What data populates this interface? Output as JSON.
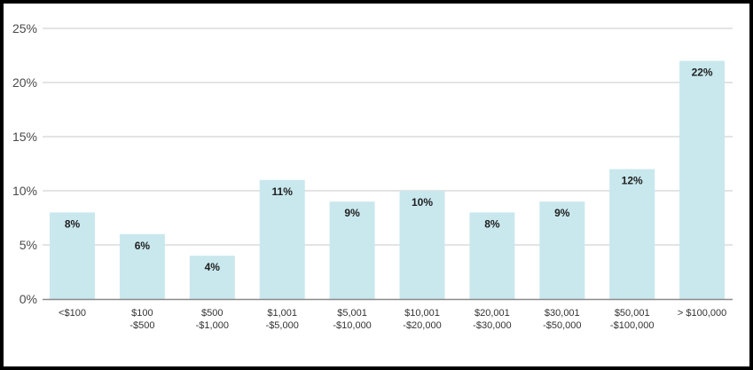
{
  "chart_data": {
    "type": "bar",
    "categories": [
      [
        "<$100"
      ],
      [
        "$100",
        "-$500"
      ],
      [
        "$500",
        "-$1,000"
      ],
      [
        "$1,001",
        "-$5,000"
      ],
      [
        "$5,001",
        "-$10,000"
      ],
      [
        "$10,001",
        "-$20,000"
      ],
      [
        "$20,001",
        "-$30,000"
      ],
      [
        "$30,001",
        "-$50,000"
      ],
      [
        "$50,001",
        "-$100,000"
      ],
      [
        "> $100,000"
      ]
    ],
    "values": [
      8,
      6,
      4,
      11,
      9,
      10,
      8,
      9,
      12,
      22
    ],
    "data_labels": [
      "8%",
      "6%",
      "4%",
      "11%",
      "9%",
      "10%",
      "8%",
      "9%",
      "12%",
      "22%"
    ],
    "title": "",
    "xlabel": "",
    "ylabel": "",
    "ylim": [
      0,
      25
    ],
    "yticks": [
      0,
      5,
      10,
      15,
      20,
      25
    ],
    "ytick_labels": [
      "0%",
      "5%",
      "10%",
      "15%",
      "20%",
      "25%"
    ],
    "grid": true,
    "bar_color": "#c9e8ee",
    "grid_color": "#c8c8c8",
    "axis_color": "#8a8a8a"
  }
}
